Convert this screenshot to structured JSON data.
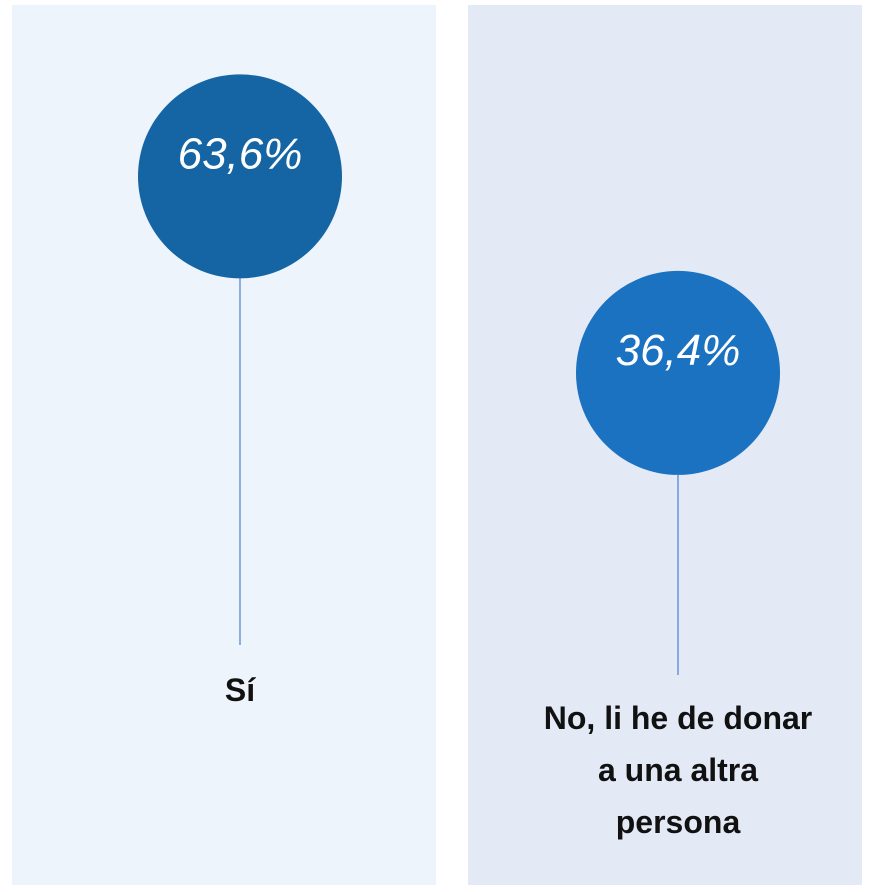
{
  "chart_data": {
    "type": "lollipop",
    "categories": [
      "Sí",
      "No, li he de donar a una altra persona"
    ],
    "values": [
      63.6,
      36.4
    ],
    "value_labels": [
      "63,6%",
      "36,4%"
    ],
    "colors": [
      "#1565a5",
      "#1a72c0"
    ],
    "ylim": [
      0,
      88
    ]
  }
}
